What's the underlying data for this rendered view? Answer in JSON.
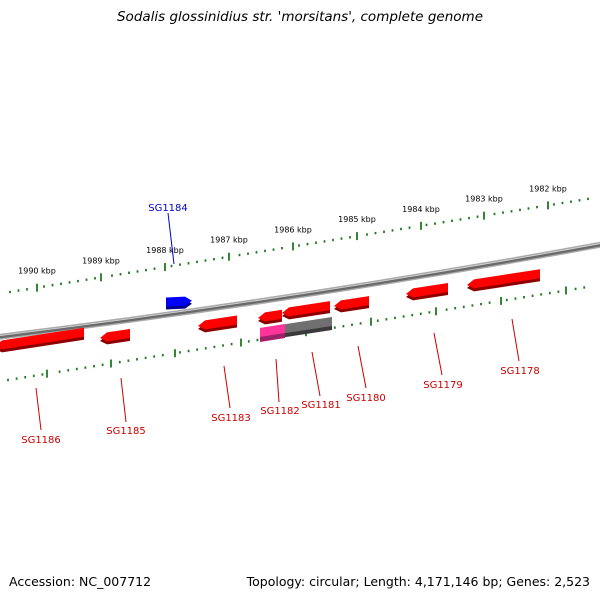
{
  "title": "Sodalis glossinidius str. 'morsitans', complete genome",
  "footer": {
    "accession": "Accession: NC_007712",
    "stats": "Topology: circular; Length: 4,171,146 bp; Genes: 2,523"
  },
  "colors": {
    "forward_tick": "#1f7a1f",
    "gene_red": "#ff0000",
    "gene_blue": "#0000ff",
    "gene_pink": "#ff3399",
    "gene_gray": "#707070",
    "backbone": "#808080",
    "label_red": "#cc0000",
    "label_blue": "#0000cc"
  },
  "scale_labels": [
    "1990 kbp",
    "1989 kbp",
    "1988 kbp",
    "1987 kbp",
    "1986 kbp",
    "1985 kbp",
    "1984 kbp",
    "1983 kbp",
    "1982 kbp"
  ],
  "genes": [
    {
      "name": "SG1186",
      "strand": "-",
      "color": "red"
    },
    {
      "name": "SG1185",
      "strand": "-",
      "color": "red"
    },
    {
      "name": "SG1184",
      "strand": "+",
      "color": "blue"
    },
    {
      "name": "SG1183",
      "strand": "-",
      "color": "red"
    },
    {
      "name": "SG1182",
      "strand": "-",
      "color": "red"
    },
    {
      "name": "SG1181",
      "strand": "-",
      "color": "red"
    },
    {
      "name": "SG1180",
      "strand": "-",
      "color": "red"
    },
    {
      "name": "SG1179",
      "strand": "-",
      "color": "red"
    },
    {
      "name": "SG1178",
      "strand": "-",
      "color": "red"
    }
  ]
}
